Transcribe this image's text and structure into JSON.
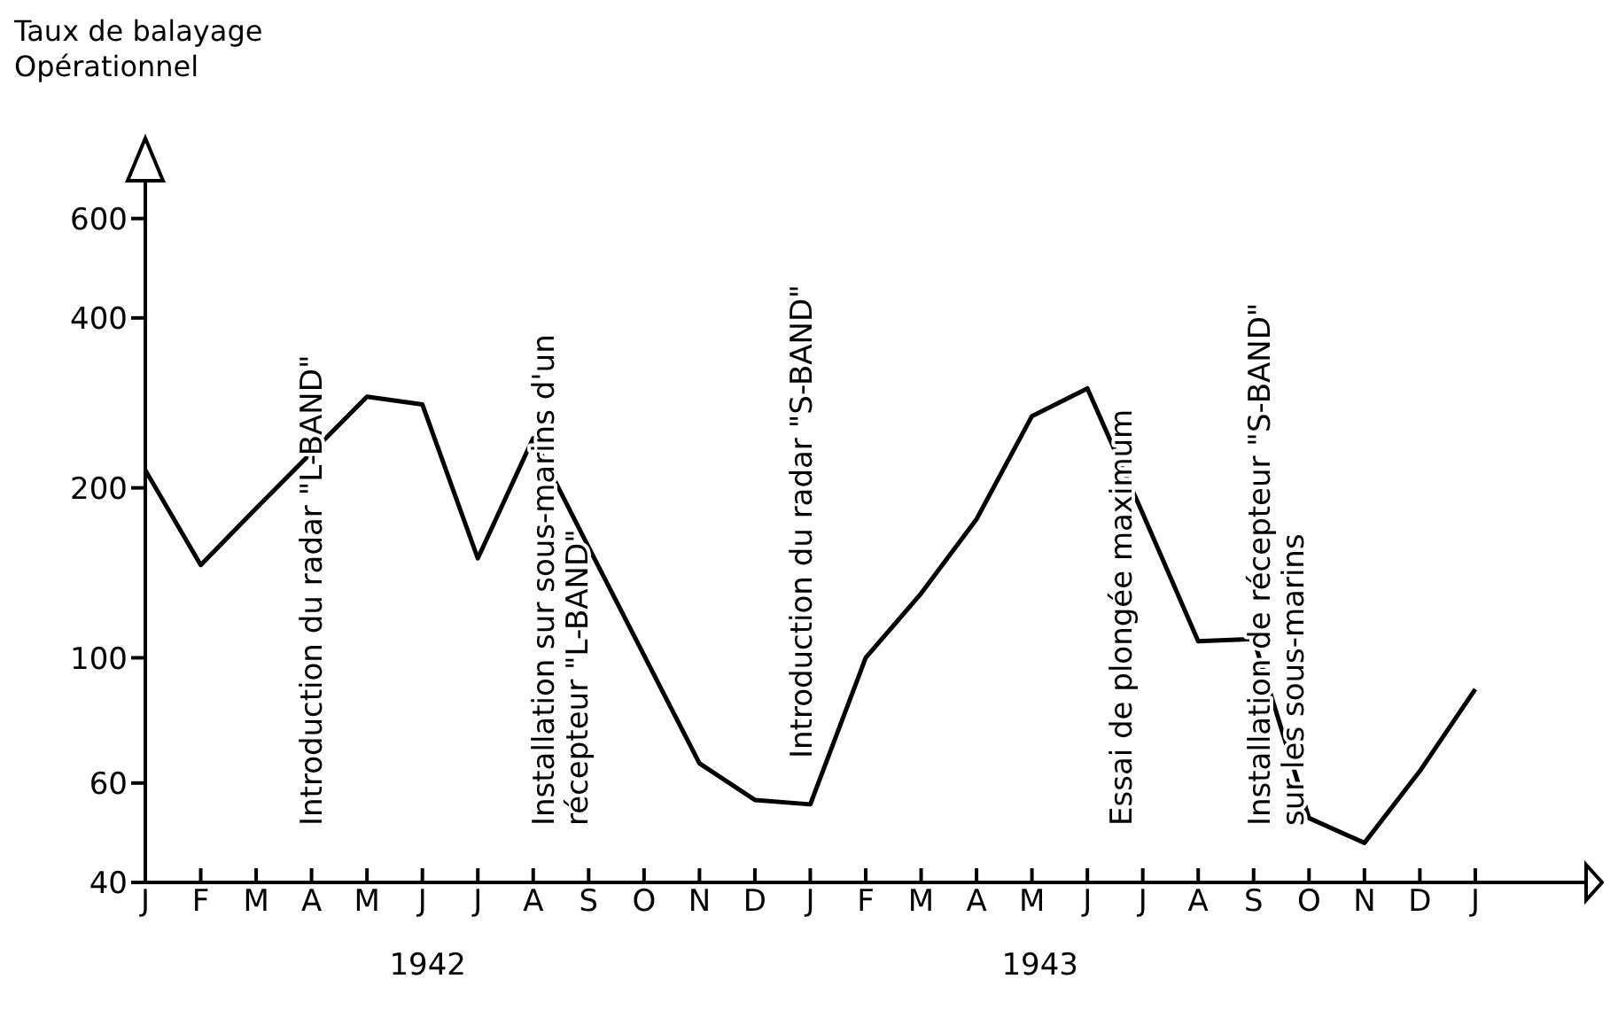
{
  "chart_data": {
    "type": "line",
    "ylabel": "Taux de balayage Opérationnel",
    "categories": [
      "J",
      "F",
      "M",
      "A",
      "M",
      "J",
      "J",
      "A",
      "S",
      "O",
      "N",
      "D",
      "J",
      "F",
      "M",
      "A",
      "M",
      "J",
      "J",
      "A",
      "S",
      "O",
      "N",
      "D",
      "J"
    ],
    "values": [
      215,
      146,
      184,
      231,
      290,
      281,
      150,
      245,
      157,
      101,
      65,
      56,
      55,
      100,
      130,
      176,
      268,
      300,
      180,
      107,
      108,
      52,
      47,
      63,
      88
    ],
    "color": "#000000",
    "log": true,
    "marker": "none",
    "line_style": "solid",
    "grid": false,
    "legend": false,
    "ylim": [
      40,
      700
    ],
    "yticks": [
      40,
      60,
      100,
      200,
      400,
      600
    ],
    "annotations": [
      "Introduction du radar \"L-BAND\"",
      "Installation sur sous-marins d'un\nrécepteur \"L-BAND\"",
      "Introduction du radar \"S-BAND\"",
      "Essai de plongée maximum",
      "Installation de récepteur \"S-BAND\"\nsur les sous-marins",
      "1942",
      "1943"
    ]
  }
}
